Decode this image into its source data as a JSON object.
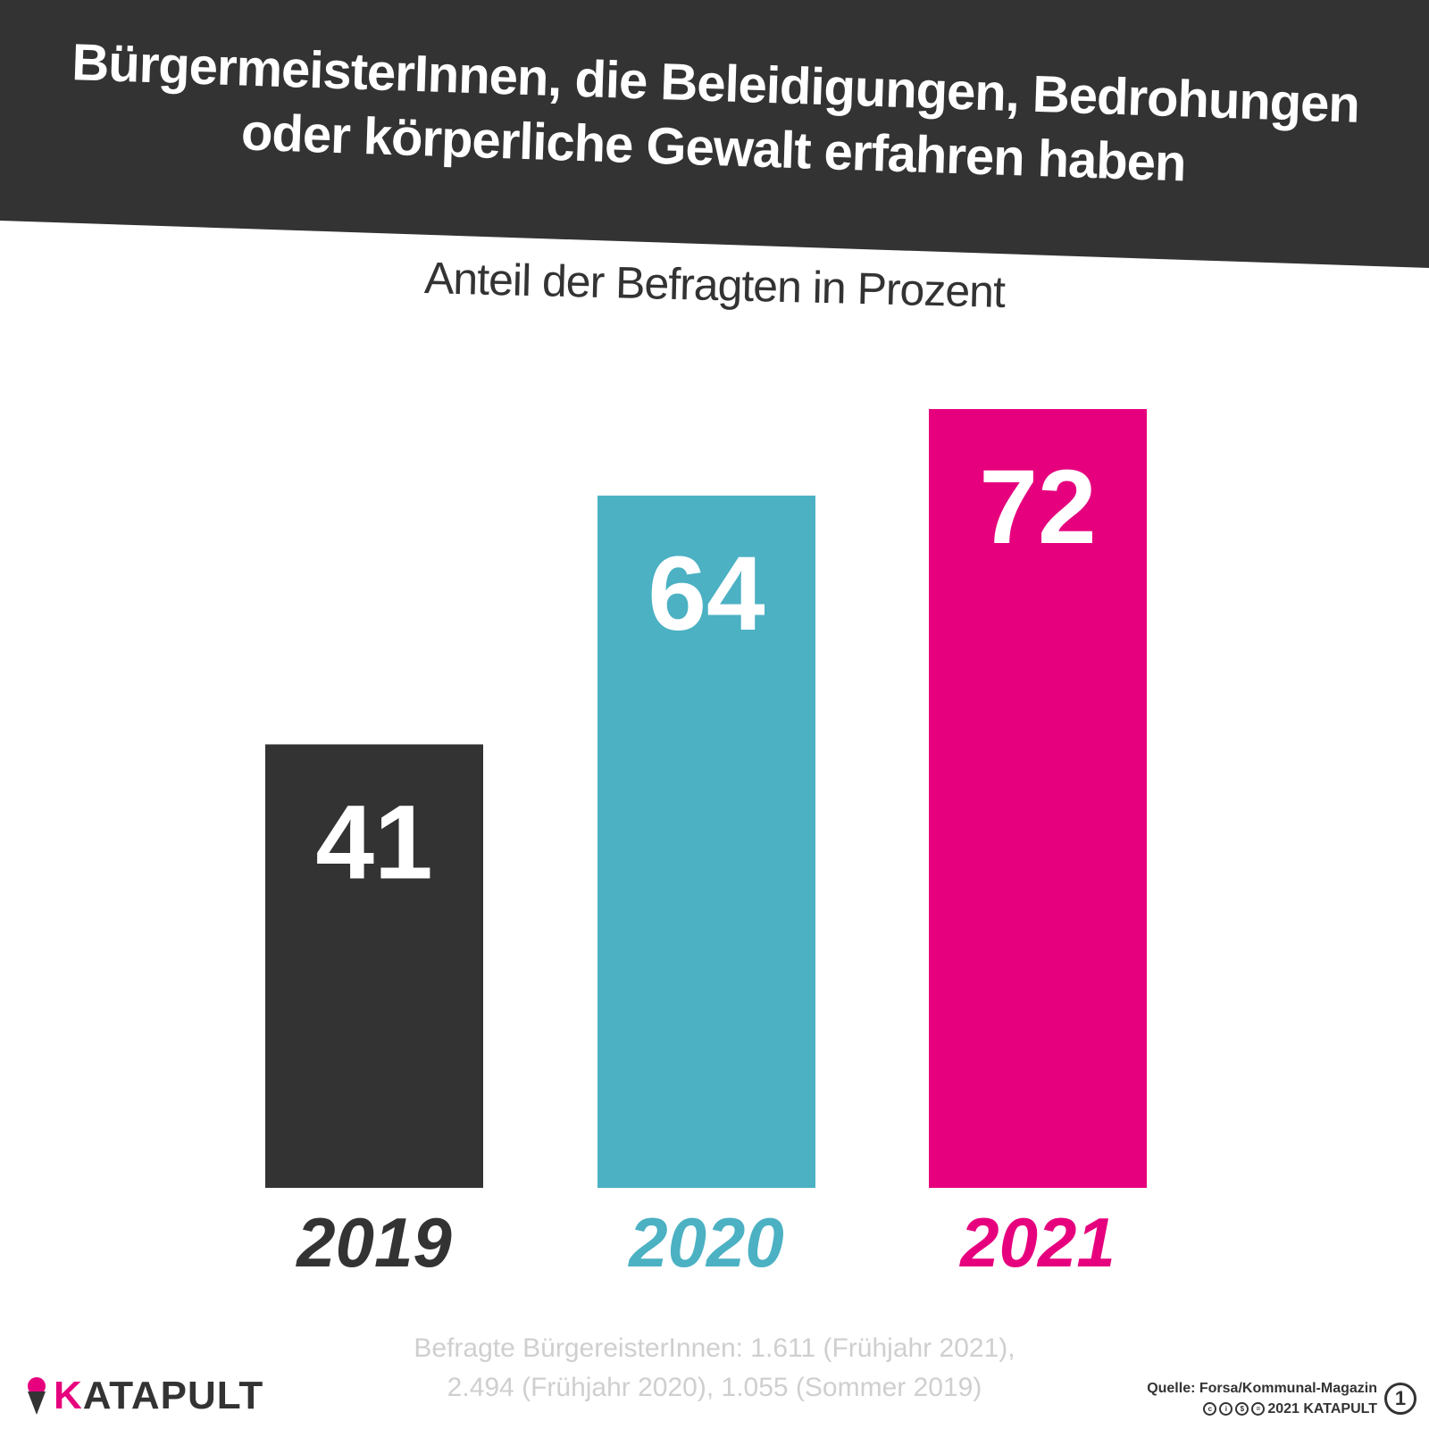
{
  "header": {
    "title_line1": "BürgermeisterInnen, die Beleidigungen, Bedrohungen",
    "title_line2": "oder körperliche Gewalt erfahren haben"
  },
  "chart_data": {
    "type": "bar",
    "title": "BürgermeisterInnen, die Beleidigungen, Bedrohungen oder körperliche Gewalt erfahren haben",
    "subtitle": "Anteil der Befragten in Prozent",
    "categories": [
      "2019",
      "2020",
      "2021"
    ],
    "values": [
      41,
      64,
      72
    ],
    "colors": [
      "#333333",
      "#4bb1c3",
      "#e6007e"
    ],
    "ylabel": "Anteil der Befragten in Prozent",
    "xlabel": "",
    "ylim": [
      0,
      72
    ],
    "grid": false,
    "legend": "none"
  },
  "footnote": {
    "line1": "Befragte BürgereisterInnen: 1.611 (Frühjahr 2021),",
    "line2": "2.494 (Frühjahr 2020), 1.055 (Sommer 2019)"
  },
  "brand": {
    "logo_first_letter": "K",
    "logo_rest": "ATAPULT",
    "logo_icon": "ice-cream-icon",
    "accent": "#e6007e",
    "dark": "#333333"
  },
  "credits": {
    "source": "Quelle: Forsa/Kommunal-Magazin",
    "copyright": "2021 KATAPULT",
    "badge": "1",
    "license_icons": [
      "cc-icon",
      "by-icon",
      "nc-icon",
      "nd-icon"
    ]
  }
}
